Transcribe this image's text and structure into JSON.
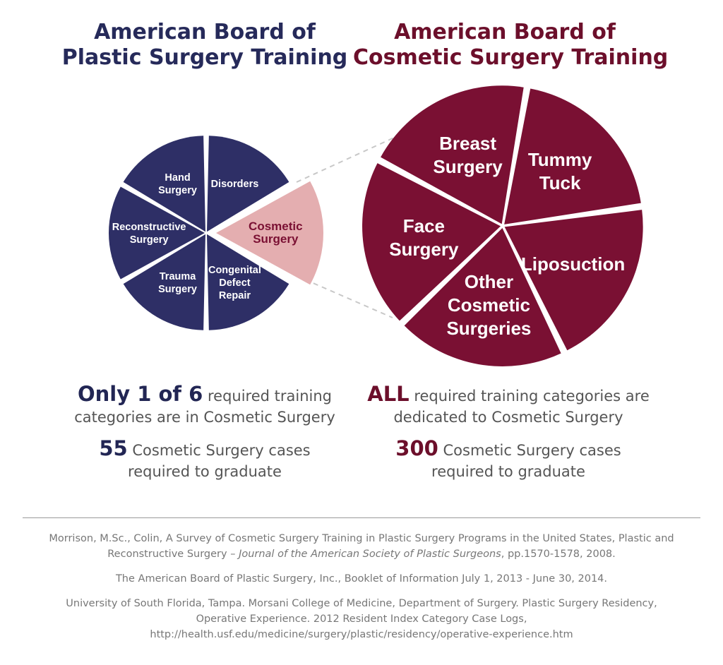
{
  "left_title": [
    "American Board of",
    "Plastic Surgery Training"
  ],
  "right_title": [
    "American Board of",
    "Cosmetic Surgery Training"
  ],
  "colors": {
    "navy": "#2e2f66",
    "maroon": "#7a1033",
    "highlight": "#e4aeb0",
    "highlight_text": "#7a1033"
  },
  "chart_data": [
    {
      "type": "pie",
      "title": "American Board of Plastic Surgery Training",
      "slices": [
        {
          "label": "Disorders",
          "value": 1,
          "highlight": false
        },
        {
          "label": "Cosmetic Surgery",
          "value": 1,
          "highlight": true
        },
        {
          "label": "Congenital Defect Repair",
          "value": 1,
          "highlight": false
        },
        {
          "label": "Trauma Surgery",
          "value": 1,
          "highlight": false
        },
        {
          "label": "Reconstructive Surgery",
          "value": 1,
          "highlight": false
        },
        {
          "label": "Hand Surgery",
          "value": 1,
          "highlight": false
        }
      ]
    },
    {
      "type": "pie",
      "title": "American Board of Cosmetic Surgery Training",
      "slices": [
        {
          "label": "Tummy Tuck",
          "value": 1
        },
        {
          "label": "Liposuction",
          "value": 1
        },
        {
          "label": "Other Cosmetic Surgeries",
          "value": 1
        },
        {
          "label": "Face Surgery",
          "value": 1
        },
        {
          "label": "Breast Surgery",
          "value": 1
        }
      ]
    }
  ],
  "pie_labels": {
    "left": [
      [
        "Disorders"
      ],
      [
        "Cosmetic",
        "Surgery"
      ],
      [
        "Congenital",
        "Defect",
        "Repair"
      ],
      [
        "Trauma",
        "Surgery"
      ],
      [
        "Reconstructive",
        "Surgery"
      ],
      [
        "Hand",
        "Surgery"
      ]
    ],
    "right": [
      [
        "Tummy",
        "Tuck"
      ],
      [
        "Liposuction"
      ],
      [
        "Other",
        "Cosmetic",
        "Surgeries"
      ],
      [
        "Face",
        "Surgery"
      ],
      [
        "Breast",
        "Surgery"
      ]
    ]
  },
  "left_stats": {
    "highlight": "Only 1 of 6",
    "line1_rest": " required training",
    "line2": "categories are in Cosmetic Surgery",
    "cases_num": "55",
    "cases_rest": " Cosmetic Surgery cases",
    "cases_line2": "required to graduate"
  },
  "right_stats": {
    "highlight": "ALL",
    "line1_rest": " required training categories are",
    "line2": "dedicated to Cosmetic Surgery",
    "cases_num": "300",
    "cases_rest": " Cosmetic Surgery cases",
    "cases_line2": "required to graduate"
  },
  "references": {
    "ref1_part1": "Morrison, M.Sc., Colin, A Survey of Cosmetic Surgery Training in Plastic Surgery Programs in the United States, Plastic and Reconstructive Surgery – ",
    "ref1_journal": "Journal of the American Society of Plastic Surgeons",
    "ref1_part2": ", pp.1570-1578, 2008.",
    "ref2": "The American Board of Plastic Surgery, Inc., Booklet of Information July 1, 2013 - June 30, 2014.",
    "ref3_line1": "University of South Florida, Tampa. Morsani College of Medicine, Department of Surgery. Plastic Surgery Residency,",
    "ref3_line2": "Operative Experience. 2012 Resident Index Category Case Logs,",
    "ref3_line3": "http://health.usf.edu/medicine/surgery/plastic/residency/operative-experience.htm"
  }
}
